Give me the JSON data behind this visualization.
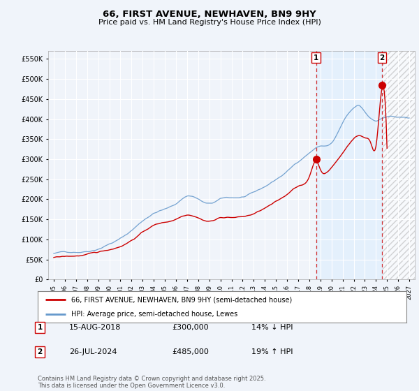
{
  "title": "66, FIRST AVENUE, NEWHAVEN, BN9 9HY",
  "subtitle": "Price paid vs. HM Land Registry's House Price Index (HPI)",
  "legend_line1": "66, FIRST AVENUE, NEWHAVEN, BN9 9HY (semi-detached house)",
  "legend_line2": "HPI: Average price, semi-detached house, Lewes",
  "transaction1_label": "1",
  "transaction1_date": "15-AUG-2018",
  "transaction1_price": "£300,000",
  "transaction1_hpi": "14% ↓ HPI",
  "transaction2_label": "2",
  "transaction2_date": "26-JUL-2024",
  "transaction2_price": "£485,000",
  "transaction2_hpi": "19% ↑ HPI",
  "footnote": "Contains HM Land Registry data © Crown copyright and database right 2025.\nThis data is licensed under the Open Government Licence v3.0.",
  "hpi_color": "#6699cc",
  "price_color": "#cc0000",
  "marker1_x": 2018.62,
  "marker1_y": 300000,
  "marker2_x": 2024.56,
  "marker2_y": 485000,
  "vline1_x": 2018.62,
  "vline2_x": 2024.56,
  "shade_end_x": 2025.5,
  "ylim": [
    0,
    570000
  ],
  "xlim_start": 1994.5,
  "xlim_end": 2027.5,
  "yticks": [
    0,
    50000,
    100000,
    150000,
    200000,
    250000,
    300000,
    350000,
    400000,
    450000,
    500000,
    550000
  ],
  "xticks": [
    1995,
    1996,
    1997,
    1998,
    1999,
    2000,
    2001,
    2002,
    2003,
    2004,
    2005,
    2006,
    2007,
    2008,
    2009,
    2010,
    2011,
    2012,
    2013,
    2014,
    2015,
    2016,
    2017,
    2018,
    2019,
    2020,
    2021,
    2022,
    2023,
    2024,
    2025,
    2026,
    2027
  ],
  "background_color": "#f0f4fa",
  "plot_bg_color": "#f0f4fa"
}
